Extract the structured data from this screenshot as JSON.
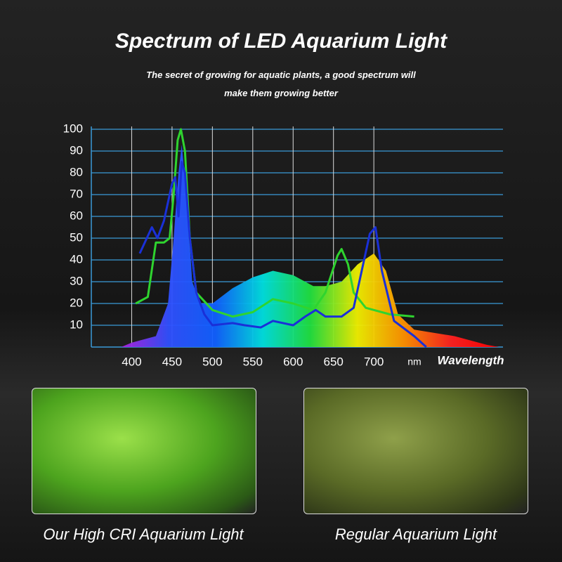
{
  "chart_data": {
    "type": "line",
    "title": "Spectrum of  LED Aquarium Light",
    "subtitle": [
      "The secret of growing for aquatic plants, a good spectrum will",
      "make them growing better"
    ],
    "x_unit": "nm",
    "x_label": "Wavelength",
    "xlim": [
      350,
      860
    ],
    "xticks": [
      400,
      450,
      500,
      550,
      600,
      650,
      700
    ],
    "ylim": [
      0,
      100
    ],
    "yticks": [
      10,
      20,
      30,
      40,
      50,
      60,
      70,
      80,
      90,
      100
    ],
    "grid": true,
    "series": [
      {
        "kind": "area",
        "gradient": [
          "#b020e0",
          "#3050ff",
          "#1060ff",
          "#00e0e0",
          "#20e040",
          "#f0f000",
          "#ff9000",
          "#ff2020",
          "#ff0000"
        ],
        "x": [
          387,
          400,
          430,
          445,
          452,
          458,
          462,
          468,
          475,
          485,
          500,
          525,
          550,
          575,
          600,
          625,
          640,
          660,
          680,
          700,
          715,
          730,
          750,
          800,
          840,
          855
        ],
        "values": [
          0,
          2,
          5,
          20,
          50,
          80,
          93,
          70,
          30,
          20,
          20,
          27,
          32,
          35,
          33,
          28,
          28,
          30,
          38,
          43,
          35,
          15,
          8,
          5,
          1,
          0
        ]
      },
      {
        "kind": "line",
        "color": "#2fd42f",
        "x": [
          405,
          420,
          430,
          440,
          447,
          452,
          457,
          461,
          466,
          472,
          480,
          500,
          525,
          550,
          575,
          600,
          625,
          640,
          655,
          660,
          668,
          675,
          690,
          720,
          750
        ],
        "values": [
          20,
          23,
          48,
          48,
          50,
          70,
          95,
          100,
          90,
          50,
          25,
          17,
          14,
          16,
          22,
          20,
          17,
          25,
          42,
          45,
          38,
          25,
          18,
          15,
          14
        ]
      },
      {
        "kind": "line",
        "color": "#1a30d8",
        "x": [
          410,
          425,
          432,
          440,
          450,
          454,
          458,
          462,
          466,
          472,
          480,
          490,
          500,
          525,
          540,
          560,
          575,
          600,
          615,
          628,
          640,
          660,
          675,
          685,
          695,
          702,
          710,
          725,
          750,
          765
        ],
        "values": [
          43,
          55,
          50,
          58,
          75,
          78,
          60,
          85,
          80,
          50,
          25,
          15,
          10,
          11,
          10,
          9,
          12,
          10,
          14,
          17,
          14,
          14,
          18,
          35,
          52,
          55,
          35,
          12,
          5,
          0
        ]
      }
    ]
  },
  "photos": [
    {
      "caption": "Our High CRI Aquarium Light"
    },
    {
      "caption": "Regular Aquarium Light"
    }
  ]
}
